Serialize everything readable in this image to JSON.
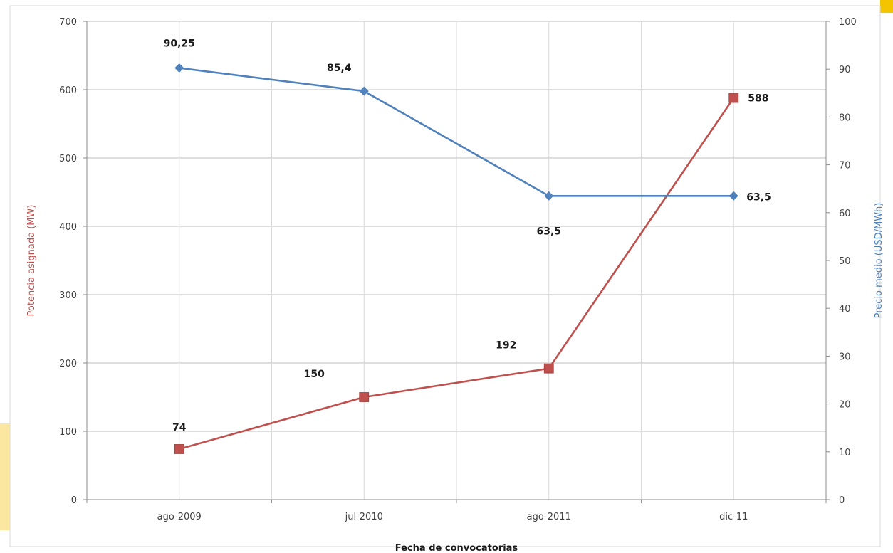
{
  "chart_data": {
    "type": "line",
    "title": "",
    "xlabel": "Fecha de convocatorias",
    "ylabel_left": "Potencia asignada (MW)",
    "ylabel_right": "Precio medio (USD/MWh)",
    "categories": [
      "ago-2009",
      "jul-2010",
      "ago-2011",
      "dic-11"
    ],
    "ylim_left": [
      0,
      700
    ],
    "yticks_left": [
      0,
      100,
      200,
      300,
      400,
      500,
      600,
      700
    ],
    "ylim_right": [
      0,
      100
    ],
    "yticks_right": [
      0,
      10,
      20,
      30,
      40,
      50,
      60,
      70,
      80,
      90,
      100
    ],
    "grid": true,
    "legend": "none",
    "series": [
      {
        "axis": "left",
        "color": "#c0504d",
        "marker": "square",
        "values": [
          74,
          150,
          192,
          588
        ],
        "labels": [
          "74",
          "150",
          "192",
          "588"
        ]
      },
      {
        "axis": "right",
        "color": "#4f81bd",
        "marker": "diamond",
        "values": [
          90.25,
          85.4,
          63.5,
          63.5
        ],
        "labels": [
          "90,25",
          "85,4",
          "63,5",
          "63,5"
        ]
      }
    ]
  }
}
